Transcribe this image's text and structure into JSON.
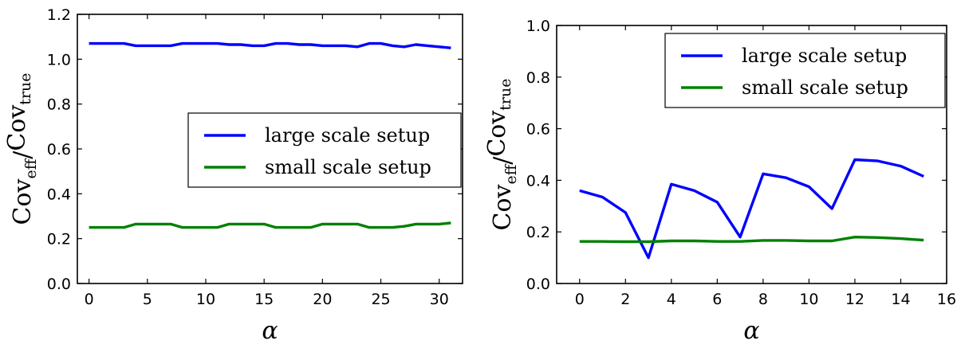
{
  "chart_data": [
    {
      "type": "line",
      "xlabel": "α",
      "ylabel": {
        "main": "Cov",
        "sub_num": "eff",
        "slash": "/",
        "main2": "Cov",
        "sub_den": "true"
      },
      "xlim": [
        -1,
        32
      ],
      "ylim": [
        0.0,
        1.2
      ],
      "xticks": [
        0,
        5,
        10,
        15,
        20,
        25,
        30
      ],
      "yticks": [
        "0.0",
        "0.2",
        "0.4",
        "0.6",
        "0.8",
        "1.0",
        "1.2"
      ],
      "legend_position": "center-right",
      "series": [
        {
          "name": "large scale setup",
          "color": "#0000ff",
          "x": [
            0,
            1,
            2,
            3,
            4,
            5,
            6,
            7,
            8,
            9,
            10,
            11,
            12,
            13,
            14,
            15,
            16,
            17,
            18,
            19,
            20,
            21,
            22,
            23,
            24,
            25,
            26,
            27,
            28,
            29,
            30,
            31
          ],
          "values": [
            1.07,
            1.07,
            1.07,
            1.07,
            1.06,
            1.06,
            1.06,
            1.06,
            1.07,
            1.07,
            1.07,
            1.07,
            1.065,
            1.065,
            1.06,
            1.06,
            1.07,
            1.07,
            1.065,
            1.065,
            1.06,
            1.06,
            1.06,
            1.055,
            1.07,
            1.07,
            1.06,
            1.055,
            1.065,
            1.06,
            1.055,
            1.05
          ]
        },
        {
          "name": "small scale setup",
          "color": "#008000",
          "x": [
            0,
            1,
            2,
            3,
            4,
            5,
            6,
            7,
            8,
            9,
            10,
            11,
            12,
            13,
            14,
            15,
            16,
            17,
            18,
            19,
            20,
            21,
            22,
            23,
            24,
            25,
            26,
            27,
            28,
            29,
            30,
            31
          ],
          "values": [
            0.25,
            0.25,
            0.25,
            0.25,
            0.265,
            0.265,
            0.265,
            0.265,
            0.25,
            0.25,
            0.25,
            0.25,
            0.265,
            0.265,
            0.265,
            0.265,
            0.25,
            0.25,
            0.25,
            0.25,
            0.265,
            0.265,
            0.265,
            0.265,
            0.25,
            0.25,
            0.25,
            0.255,
            0.265,
            0.265,
            0.265,
            0.27
          ]
        }
      ]
    },
    {
      "type": "line",
      "xlabel": "α",
      "ylabel": {
        "main": "Cov",
        "sub_num": "eff",
        "slash": "/",
        "main2": "Cov",
        "sub_den": "true"
      },
      "xlim": [
        -1,
        16
      ],
      "ylim": [
        0.0,
        1.0
      ],
      "xticks": [
        0,
        2,
        4,
        6,
        8,
        10,
        12,
        14,
        16
      ],
      "yticks": [
        "0.0",
        "0.2",
        "0.4",
        "0.6",
        "0.8",
        "1.0"
      ],
      "legend_position": "upper-right",
      "series": [
        {
          "name": "large scale setup",
          "color": "#0000ff",
          "x": [
            0,
            1,
            2,
            3,
            4,
            5,
            6,
            7,
            8,
            9,
            10,
            11,
            12,
            13,
            14,
            15
          ],
          "values": [
            0.36,
            0.335,
            0.275,
            0.1,
            0.385,
            0.36,
            0.315,
            0.18,
            0.425,
            0.41,
            0.375,
            0.29,
            0.48,
            0.475,
            0.455,
            0.415
          ]
        },
        {
          "name": "small scale setup",
          "color": "#008000",
          "x": [
            0,
            1,
            2,
            3,
            4,
            5,
            6,
            7,
            8,
            9,
            10,
            11,
            12,
            13,
            14,
            15
          ],
          "values": [
            0.163,
            0.163,
            0.162,
            0.162,
            0.165,
            0.165,
            0.163,
            0.163,
            0.167,
            0.167,
            0.165,
            0.165,
            0.18,
            0.178,
            0.174,
            0.168
          ]
        }
      ]
    }
  ]
}
